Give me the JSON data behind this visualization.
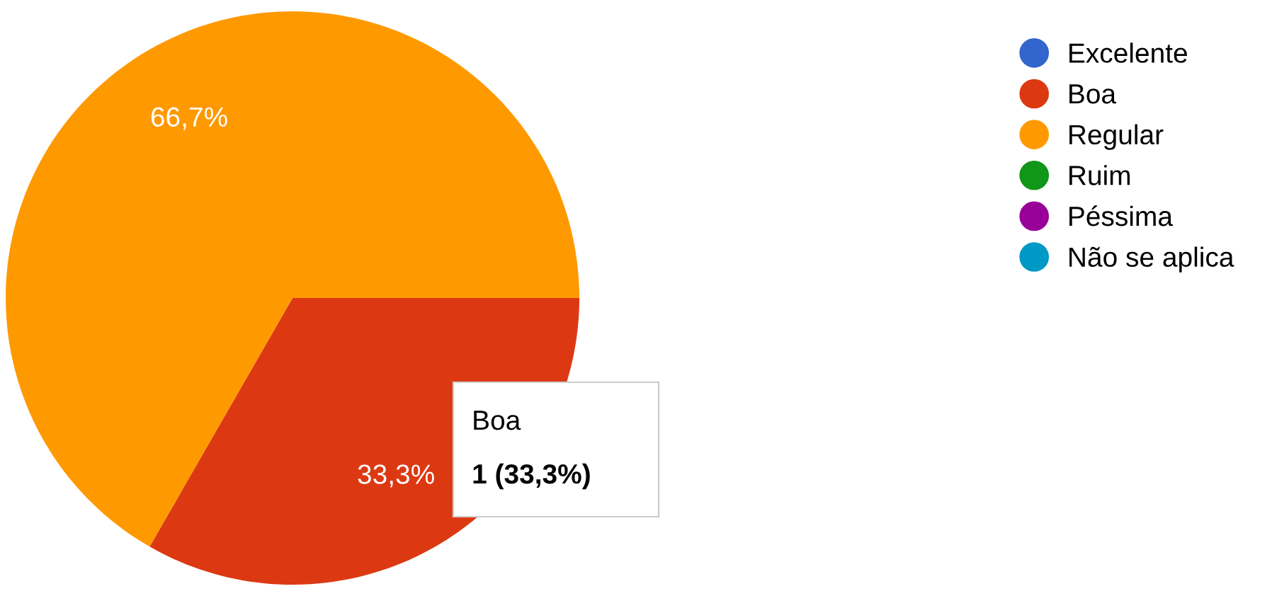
{
  "chart_data": {
    "type": "pie",
    "categories": [
      "Excelente",
      "Boa",
      "Regular",
      "Ruim",
      "Péssima",
      "Não se aplica"
    ],
    "values": [
      0,
      33.3,
      66.7,
      0,
      0,
      0
    ],
    "colors": [
      "#3366cc",
      "#dc3912",
      "#ff9900",
      "#109618",
      "#990099",
      "#0099c6"
    ],
    "value_labels": [
      null,
      "33,3%",
      "66,7%",
      null,
      null,
      null
    ],
    "legend": "right",
    "annotations": [
      "Boa",
      "1 (33,3%)"
    ]
  }
}
